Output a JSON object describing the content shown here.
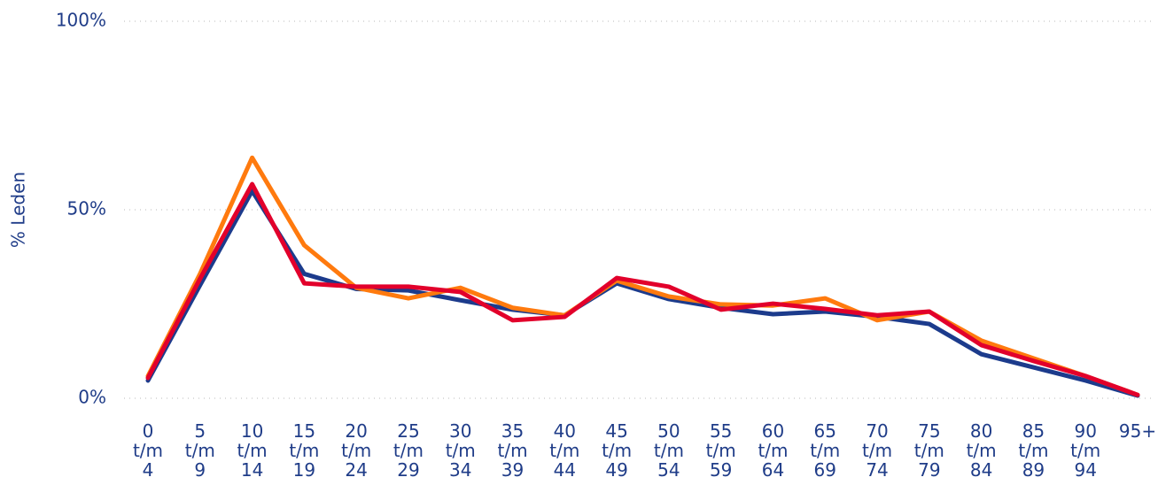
{
  "chart_data": {
    "type": "line",
    "y_label": "% Leden",
    "categories": [
      "0 t/m 4",
      "5 t/m 9",
      "10 t/m 14",
      "15 t/m 19",
      "20 t/m 24",
      "25 t/m 29",
      "30 t/m 34",
      "35 t/m 39",
      "40 t/m 44",
      "45 t/m 49",
      "50 t/m 54",
      "55 t/m 59",
      "60 t/m 64",
      "65 t/m 69",
      "70 t/m 74",
      "75 t/m 79",
      "80 t/m 84",
      "85 t/m 89",
      "90 t/m 94",
      "95+"
    ],
    "series": [
      {
        "color": "#1c3b8c",
        "values": [
          4.7,
          30,
          55,
          33,
          29,
          28.6,
          26,
          23.5,
          22,
          30.5,
          26.3,
          24,
          22.3,
          23,
          21.6,
          19.7,
          11.7,
          8.2,
          4.7,
          0.7
        ]
      },
      {
        "color": "#ff7a0e",
        "values": [
          5.9,
          33,
          63.8,
          40.6,
          29.3,
          26.5,
          29.3,
          24,
          22,
          31.2,
          27,
          24.9,
          24.6,
          26.5,
          20.7,
          23,
          15.3,
          10.6,
          5.9,
          0.9
        ]
      },
      {
        "color": "#e2002b",
        "values": [
          5.4,
          31.7,
          56.8,
          30.5,
          29.6,
          29.6,
          28.2,
          20.7,
          21.6,
          31.9,
          29.6,
          23.5,
          25.1,
          23.7,
          22,
          23,
          14.1,
          9.9,
          5.9,
          0.9
        ]
      }
    ],
    "ylim": [
      0,
      100
    ],
    "yticks": [
      {
        "value": 0,
        "label": "0%"
      },
      {
        "value": 50,
        "label": "50%"
      },
      {
        "value": 100,
        "label": "100%"
      }
    ],
    "grid": true
  }
}
